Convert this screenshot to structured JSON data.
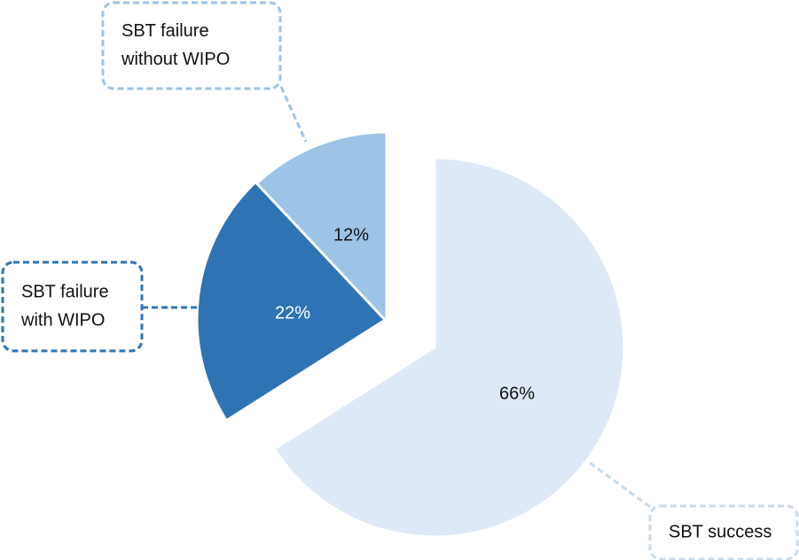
{
  "chart_data": {
    "type": "pie",
    "exploded": true,
    "slices": [
      {
        "label_lines": [
          "SBT success"
        ],
        "value": 66,
        "value_label": "66%",
        "color": "#dde9f6",
        "border_color": "#c8dced",
        "text_color": "#111111"
      },
      {
        "label_lines": [
          "SBT failure",
          "with WIPO"
        ],
        "value": 22,
        "value_label": "22%",
        "color": "#2e74b5",
        "border_color": "#2e74b5",
        "text_color": "#ffffff"
      },
      {
        "label_lines": [
          "SBT failure",
          "without WIPO"
        ],
        "value": 12,
        "value_label": "12%",
        "color": "#9dc3e6",
        "border_color": "#9dc3e6",
        "text_color": "#111111"
      }
    ]
  }
}
